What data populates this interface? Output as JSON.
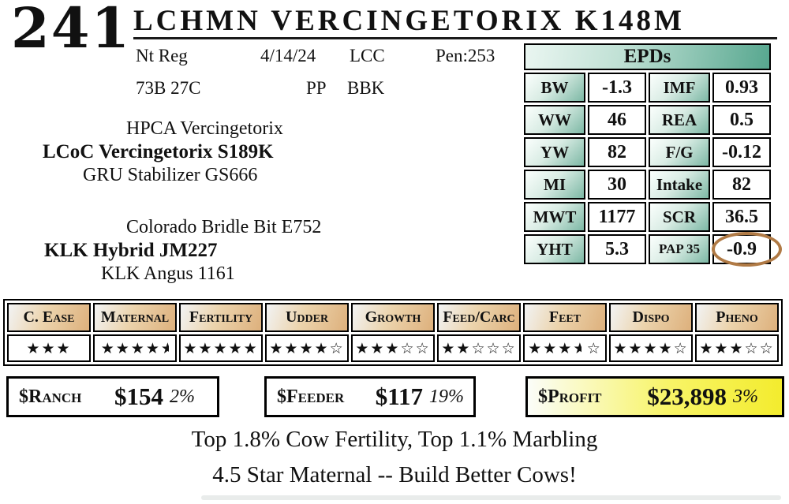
{
  "lot": {
    "number": "241",
    "title": "LCHMN VERCINGETORIX K148M"
  },
  "info": {
    "reg": "Nt Reg",
    "date": "4/14/24",
    "code": "LCC",
    "pen": "Pen:253",
    "tattoo": "73B 27C",
    "polled": "PP",
    "color": "BBK"
  },
  "pedigree": {
    "sire_sire": "HPCA Vercingetorix",
    "sire": "LCoC Vercingetorix S189K",
    "sire_dam": "GRU Stabilizer GS666",
    "dam_sire": "Colorado Bridle Bit E752",
    "dam": "KLK Hybrid JM227",
    "dam_dam": "KLK Angus 1161"
  },
  "epds": {
    "title": "EPDs",
    "rows": [
      {
        "l1": "BW",
        "v1": "-1.3",
        "l2": "IMF",
        "v2": "0.93"
      },
      {
        "l1": "WW",
        "v1": "46",
        "l2": "REA",
        "v2": "0.5"
      },
      {
        "l1": "YW",
        "v1": "82",
        "l2": "F/G",
        "v2": "-0.12"
      },
      {
        "l1": "MI",
        "v1": "30",
        "l2": "Intake",
        "v2": "82"
      },
      {
        "l1": "MWT",
        "v1": "1177",
        "l2": "SCR",
        "v2": "36.5"
      },
      {
        "l1": "YHT",
        "v1": "5.3",
        "l2": "PAP 35",
        "v2": "-0.9"
      }
    ],
    "circled_value": "-0.9",
    "circle_color": "#b07a45"
  },
  "traits": [
    {
      "label": "C. Ease",
      "stars": "fff"
    },
    {
      "label": "Maternal",
      "stars": "ffffh"
    },
    {
      "label": "Fertility",
      "stars": "fffff"
    },
    {
      "label": "Udder",
      "stars": "ffffe"
    },
    {
      "label": "Growth",
      "stars": "fffee"
    },
    {
      "label": "Feed/Carc",
      "stars": "ffeee"
    },
    {
      "label": "Feet",
      "stars": "fffh e"
    },
    {
      "label": "Dispo",
      "stars": "ffffe"
    },
    {
      "label": "Pheno",
      "stars": "fffee"
    }
  ],
  "values": [
    {
      "label": "$Ranch",
      "amount": "$154",
      "pct": "2%",
      "highlight": false
    },
    {
      "label": "$Feeder",
      "amount": "$117",
      "pct": "19%",
      "highlight": false
    },
    {
      "label": "$Profit",
      "amount": "$23,898",
      "pct": "3%",
      "highlight": true
    }
  ],
  "footer": {
    "line1": "Top 1.8% Cow Fertility, Top 1.1% Marbling",
    "line2": "4.5 Star Maternal -- Build Better Cows!"
  },
  "colors": {
    "epd_teal": "#57a78f",
    "trait_tan": "#ddb07c",
    "profit_yellow": "#f3ec2e",
    "pap_circle_brown": "#b07a45"
  }
}
